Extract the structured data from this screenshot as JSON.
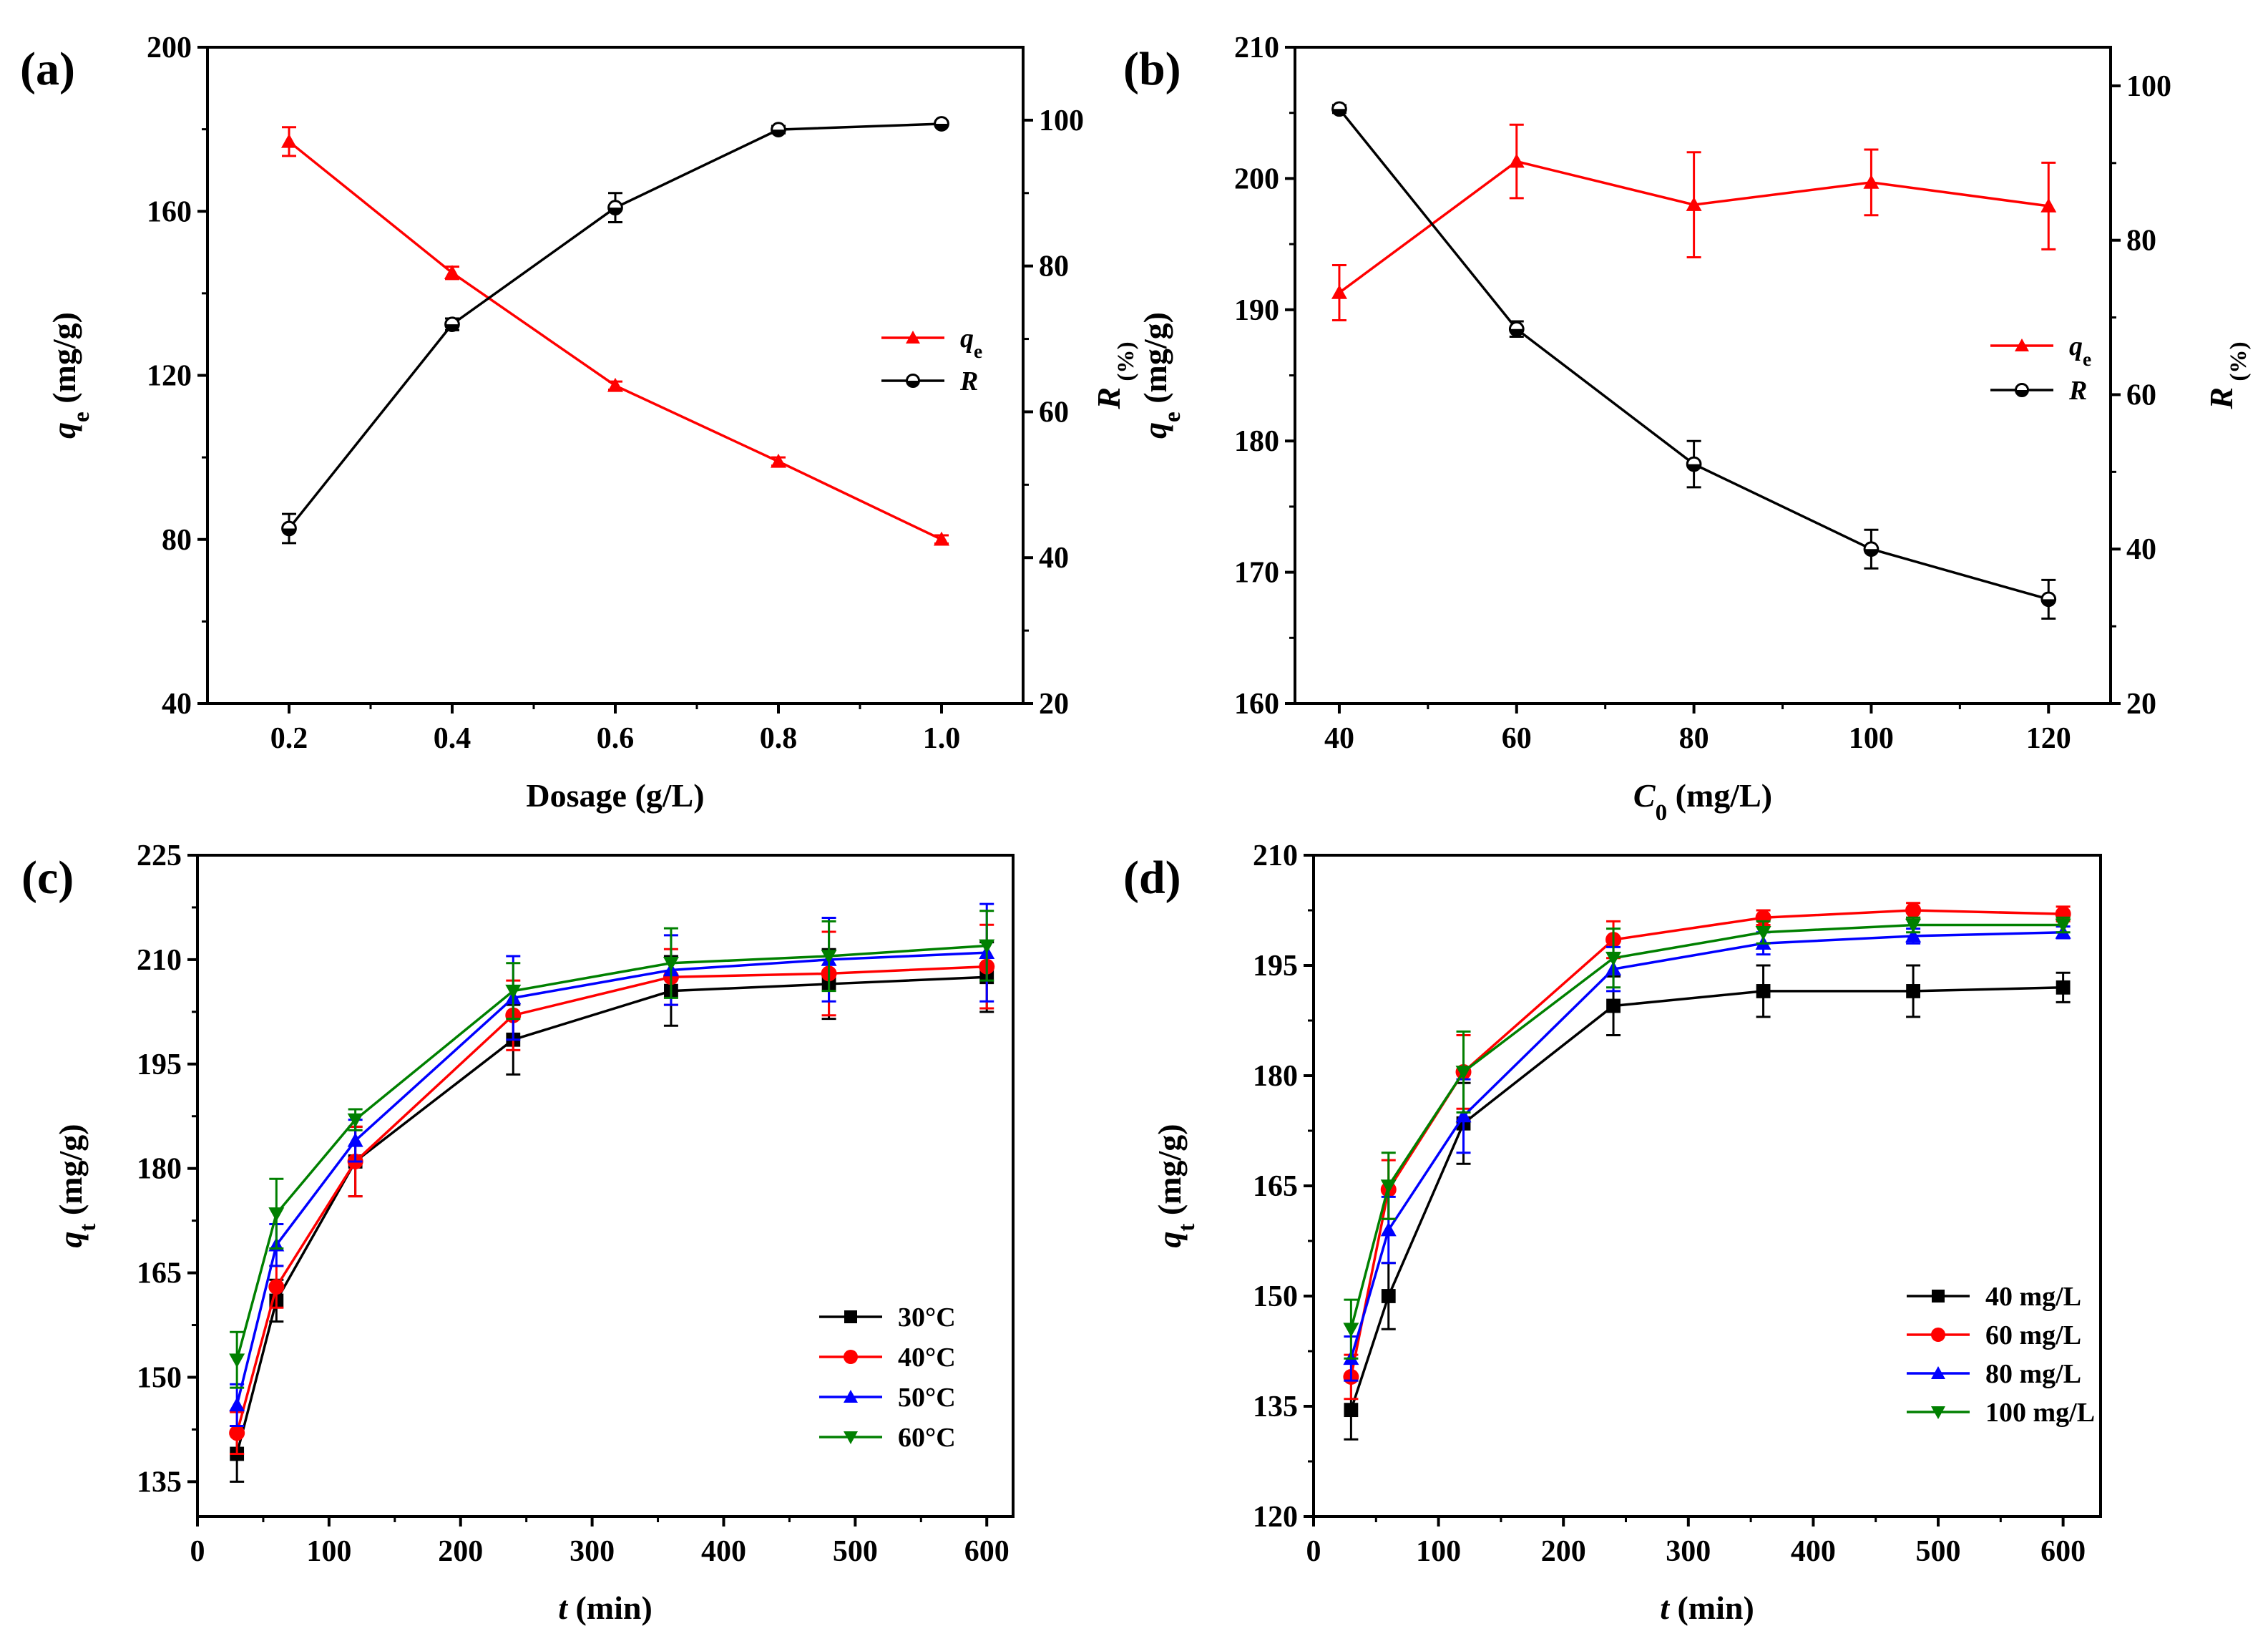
{
  "figure": {
    "background": "#ffffff"
  },
  "chart_data": [
    {
      "panel": "(a)",
      "type": "line",
      "dual_axis": true,
      "xlabel": "Dosage (g/L)",
      "ylabel": [
        "q",
        "e",
        " (mg/g)"
      ],
      "y2label": [
        "R",
        " (%)"
      ],
      "xlim": [
        0.1,
        1.1
      ],
      "ylim": [
        40,
        200
      ],
      "y2lim": [
        20,
        110
      ],
      "xticks": [
        0.2,
        0.4,
        0.6,
        0.8,
        1.0
      ],
      "xtick_labels": [
        "0.2",
        "0.4",
        "0.6",
        "0.8",
        "1.0"
      ],
      "yticks": [
        40,
        80,
        120,
        160,
        200
      ],
      "ytick_labels": [
        "40",
        "80",
        "120",
        "160",
        "200"
      ],
      "y2ticks": [
        20,
        40,
        60,
        80,
        100
      ],
      "y2tick_labels": [
        "20",
        "40",
        "60",
        "80",
        "100"
      ],
      "legend_position": "center-right",
      "series": [
        {
          "name": "qe",
          "legend_label": [
            "q",
            "e"
          ],
          "axis": "left",
          "color": "#ff0000",
          "marker": "triangle",
          "x": [
            0.2,
            0.4,
            0.6,
            0.8,
            1.0
          ],
          "values": [
            177,
            145,
            117.5,
            99,
            80
          ],
          "errors": [
            3.5,
            1.5,
            1,
            1,
            1
          ]
        },
        {
          "name": "R",
          "legend_label": [
            "R",
            ""
          ],
          "axis": "right",
          "color": "#000000",
          "marker": "half-circle",
          "x": [
            0.2,
            0.4,
            0.6,
            0.8,
            1.0
          ],
          "values": [
            44,
            72,
            88,
            98.7,
            99.5
          ],
          "errors": [
            2,
            0.8,
            2,
            0.5,
            0.3
          ]
        }
      ]
    },
    {
      "panel": "(b)",
      "type": "line",
      "dual_axis": true,
      "xlabel": [
        "C",
        "0",
        " (mg/L)"
      ],
      "ylabel": [
        "q",
        "e",
        " (mg/g)"
      ],
      "y2label": [
        "R",
        " (%)"
      ],
      "xlim": [
        35,
        127
      ],
      "ylim": [
        160,
        210
      ],
      "y2lim": [
        20,
        105
      ],
      "xticks": [
        40,
        60,
        80,
        100,
        120
      ],
      "xtick_labels": [
        "40",
        "60",
        "80",
        "100",
        "120"
      ],
      "yticks": [
        160,
        170,
        180,
        190,
        200,
        210
      ],
      "ytick_labels": [
        "160",
        "170",
        "180",
        "190",
        "200",
        "210"
      ],
      "y2ticks": [
        20,
        40,
        60,
        80,
        100
      ],
      "y2tick_labels": [
        "20",
        "40",
        "60",
        "80",
        "100"
      ],
      "legend_position": "center-right",
      "series": [
        {
          "name": "qe",
          "legend_label": [
            "q",
            "e"
          ],
          "axis": "left",
          "color": "#ff0000",
          "marker": "triangle",
          "x": [
            40,
            60,
            80,
            100,
            120
          ],
          "values": [
            191.3,
            201.3,
            198,
            199.7,
            197.9
          ],
          "errors": [
            2.1,
            2.8,
            4,
            2.5,
            3.3
          ]
        },
        {
          "name": "R",
          "legend_label": [
            "R",
            ""
          ],
          "axis": "right",
          "color": "#000000",
          "marker": "half-circle",
          "x": [
            40,
            60,
            80,
            100,
            120
          ],
          "values": [
            97,
            68.5,
            51,
            40,
            33.5
          ],
          "errors": [
            0.5,
            1,
            3,
            2.5,
            2.5
          ]
        }
      ]
    },
    {
      "panel": "(c)",
      "type": "line",
      "dual_axis": false,
      "xlabel": [
        "t",
        "",
        " (min)"
      ],
      "ylabel": [
        "q",
        "t",
        " (mg/g)"
      ],
      "xlim": [
        0,
        620
      ],
      "ylim": [
        130,
        225
      ],
      "xticks": [
        0,
        100,
        200,
        300,
        400,
        500,
        600
      ],
      "xtick_labels": [
        "0",
        "100",
        "200",
        "300",
        "400",
        "500",
        "600"
      ],
      "yticks": [
        135,
        150,
        165,
        180,
        195,
        210,
        225
      ],
      "ytick_labels": [
        "135",
        "150",
        "165",
        "180",
        "195",
        "210",
        "225"
      ],
      "legend_position": "bottom-right",
      "series": [
        {
          "name": "30°C",
          "color": "#000000",
          "marker": "square",
          "x": [
            30,
            60,
            120,
            240,
            360,
            480,
            600
          ],
          "values": [
            139,
            161,
            181,
            198.5,
            205.5,
            206.5,
            207.5
          ],
          "errors": [
            4,
            3,
            5,
            5,
            5,
            5,
            5
          ]
        },
        {
          "name": "40°C",
          "color": "#ff0000",
          "marker": "circle",
          "x": [
            30,
            60,
            120,
            240,
            360,
            480,
            600
          ],
          "values": [
            142,
            163,
            181,
            202,
            207.5,
            208,
            209
          ],
          "errors": [
            3,
            3,
            5,
            5,
            4,
            6,
            6
          ]
        },
        {
          "name": "50°C",
          "color": "#0000ff",
          "marker": "triangle",
          "x": [
            30,
            60,
            120,
            240,
            360,
            480,
            600
          ],
          "values": [
            146,
            169,
            184,
            204.5,
            208.5,
            210,
            211
          ],
          "errors": [
            3,
            3,
            3,
            6,
            5,
            6,
            7
          ]
        },
        {
          "name": "60°C",
          "color": "#008000",
          "marker": "triangle-down",
          "x": [
            30,
            60,
            120,
            240,
            360,
            480,
            600
          ],
          "values": [
            152.5,
            173.5,
            187,
            205.5,
            209.5,
            210.5,
            212
          ],
          "errors": [
            4,
            5,
            1.5,
            4,
            5,
            5,
            5
          ]
        }
      ]
    },
    {
      "panel": "(d)",
      "type": "line",
      "dual_axis": false,
      "xlabel": [
        "t",
        "",
        " (min)"
      ],
      "ylabel": [
        "q",
        "t",
        " (mg/g)"
      ],
      "xlim": [
        0,
        630
      ],
      "ylim": [
        120,
        210
      ],
      "xticks": [
        0,
        100,
        200,
        300,
        400,
        500,
        600
      ],
      "xtick_labels": [
        "0",
        "100",
        "200",
        "300",
        "400",
        "500",
        "600"
      ],
      "yticks": [
        120,
        135,
        150,
        165,
        180,
        195,
        210
      ],
      "ytick_labels": [
        "120",
        "135",
        "150",
        "165",
        "180",
        "195",
        "210"
      ],
      "legend_position": "bottom-right",
      "series": [
        {
          "name": "40 mg/L",
          "color": "#000000",
          "marker": "square",
          "x": [
            30,
            60,
            120,
            240,
            360,
            480,
            600
          ],
          "values": [
            134.5,
            150,
            173.5,
            189.5,
            191.5,
            191.5,
            192
          ],
          "errors": [
            4,
            4.5,
            5.5,
            4,
            3.5,
            3.5,
            2
          ]
        },
        {
          "name": "60 mg/L",
          "color": "#ff0000",
          "marker": "circle",
          "x": [
            30,
            60,
            120,
            240,
            360,
            480,
            600
          ],
          "values": [
            139,
            164.5,
            180.5,
            198.5,
            201.5,
            202.5,
            202
          ],
          "errors": [
            3,
            4,
            5,
            2.5,
            1,
            1,
            1
          ]
        },
        {
          "name": "80 mg/L",
          "color": "#0000ff",
          "marker": "triangle",
          "x": [
            30,
            60,
            120,
            240,
            360,
            480,
            600
          ],
          "values": [
            141.5,
            159,
            174.5,
            194.5,
            198,
            199,
            199.5
          ],
          "errors": [
            3,
            4.5,
            5,
            3,
            1.5,
            1,
            0.8
          ]
        },
        {
          "name": "100 mg/L",
          "color": "#008000",
          "marker": "triangle-down",
          "x": [
            30,
            60,
            120,
            240,
            360,
            480,
            600
          ],
          "values": [
            145.5,
            165,
            180.5,
            196,
            199.5,
            200.5,
            200.5
          ],
          "errors": [
            4,
            4.5,
            5.5,
            4,
            1.5,
            1,
            1
          ]
        }
      ]
    }
  ]
}
